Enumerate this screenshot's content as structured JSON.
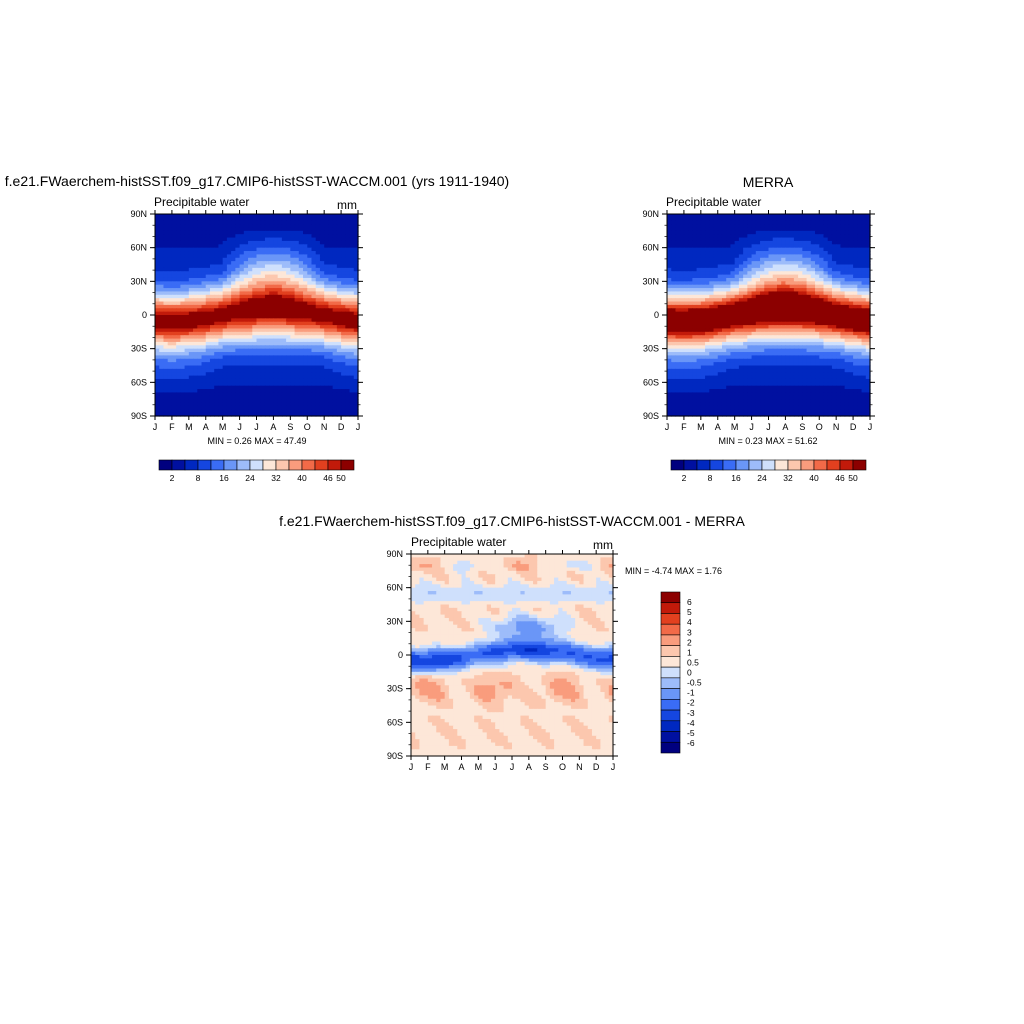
{
  "chart_data": [
    {
      "type": "heatmap",
      "id": "model",
      "title": "f.e21.FWaerchem-histSST.f09_g17.CMIP6-histSST-WACCM.001 (yrs 1911-1940)",
      "subtitle_left": "Precipitable water",
      "subtitle_right": "mm",
      "x_tick_labels": [
        "J",
        "F",
        "M",
        "A",
        "M",
        "J",
        "J",
        "A",
        "S",
        "O",
        "N",
        "D",
        "J"
      ],
      "y_tick_labels": [
        "90N",
        "60N",
        "30N",
        "0",
        "30S",
        "60S",
        "90S"
      ],
      "stats": "MIN =   0.26 MAX =  47.49",
      "min": 0.26,
      "max": 47.49,
      "colorbar_labels": [
        "2",
        "8",
        "16",
        "24",
        "32",
        "40",
        "46",
        "50"
      ]
    },
    {
      "type": "heatmap",
      "id": "obs",
      "title": "MERRA",
      "subtitle_left": "Precipitable water",
      "subtitle_right": "",
      "x_tick_labels": [
        "J",
        "F",
        "M",
        "A",
        "M",
        "J",
        "J",
        "A",
        "S",
        "O",
        "N",
        "D",
        "J"
      ],
      "y_tick_labels": [
        "90N",
        "60N",
        "30N",
        "0",
        "30S",
        "60S",
        "90S"
      ],
      "stats": "MIN =   0.23 MAX =  51.62",
      "min": 0.23,
      "max": 51.62,
      "colorbar_labels": [
        "2",
        "8",
        "16",
        "24",
        "32",
        "40",
        "46",
        "50"
      ]
    },
    {
      "type": "heatmap",
      "id": "diff",
      "title": "f.e21.FWaerchem-histSST.f09_g17.CMIP6-histSST-WACCM.001 - MERRA",
      "subtitle_left": "Precipitable water",
      "subtitle_right": "mm",
      "x_tick_labels": [
        "J",
        "F",
        "M",
        "A",
        "M",
        "J",
        "J",
        "A",
        "S",
        "O",
        "N",
        "D",
        "J"
      ],
      "y_tick_labels": [
        "90N",
        "60N",
        "30N",
        "0",
        "30S",
        "60S",
        "90S"
      ],
      "stats": "MIN =  -4.74 MAX =   1.76",
      "min": -4.74,
      "max": 1.76,
      "colorbar_labels": [
        "6",
        "5",
        "4",
        "3",
        "2",
        "1",
        "0.5",
        "0",
        "-0.5",
        "-1",
        "-2",
        "-3",
        "-4",
        "-5",
        "-6"
      ]
    }
  ],
  "colors": {
    "abs_levels": [
      "#00007f",
      "#0010a0",
      "#0028c0",
      "#1546e0",
      "#3a6cf5",
      "#6a96f7",
      "#9dbcfa",
      "#cfe0fc",
      "#fde7d8",
      "#fcc7ae",
      "#f99c7d",
      "#f26a48",
      "#e2401f",
      "#c21a0a",
      "#8c0000"
    ],
    "diff_levels": [
      "#00007f",
      "#0010a0",
      "#0028c0",
      "#1546e0",
      "#3a6cf5",
      "#6a96f7",
      "#9dbcfa",
      "#cfe0fc",
      "#fde7d8",
      "#fcc7ae",
      "#f99c7d",
      "#f26a48",
      "#e2401f",
      "#c21a0a",
      "#8c0000"
    ]
  }
}
